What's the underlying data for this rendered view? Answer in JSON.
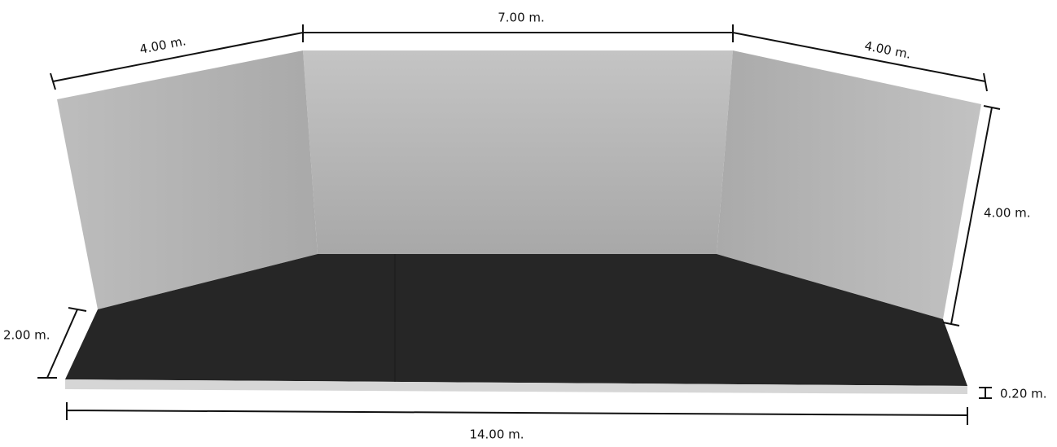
{
  "dimensions": {
    "left_wall_width": "4.00 m.",
    "back_wall_width": "7.00 m.",
    "right_wall_width": "4.00 m.",
    "wall_height": "4.00 m.",
    "stage_depth": "2.00 m.",
    "stage_height": "0.20 m.",
    "stage_width": "14.00 m."
  }
}
